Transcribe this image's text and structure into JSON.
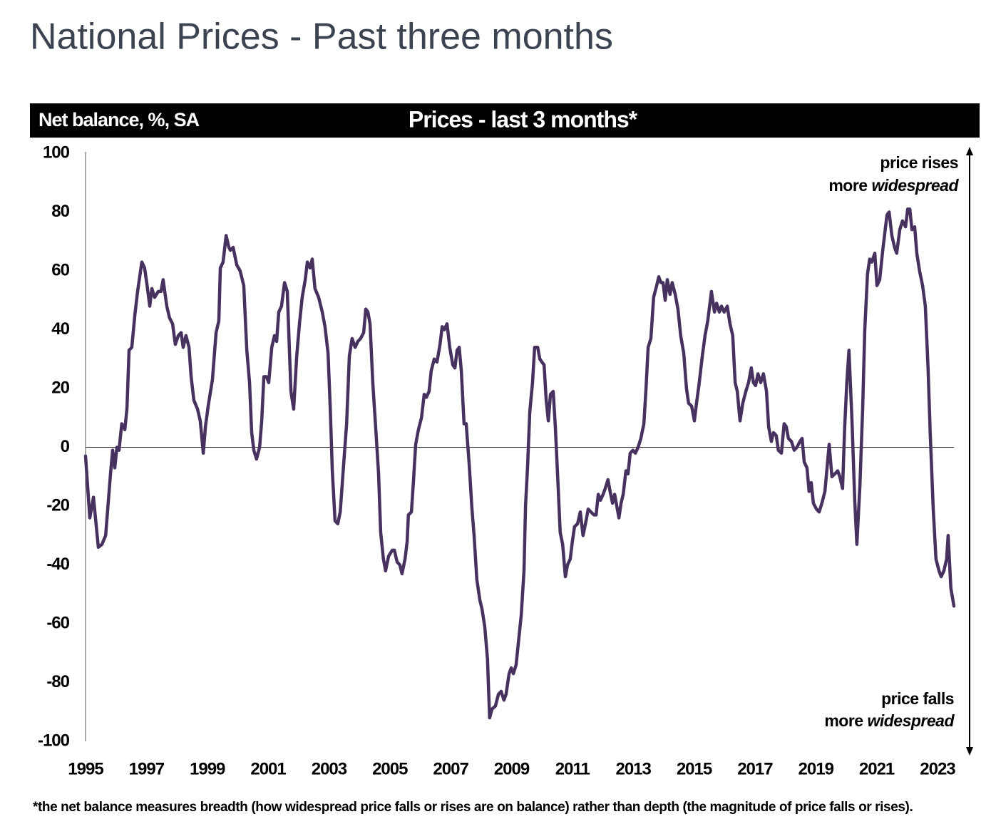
{
  "chart_data": {
    "type": "line",
    "title": "National Prices - Past three months",
    "y_label": "Net balance, %, SA",
    "subtitle": "Prices - last 3 months*",
    "footnote": "*the net balance measures breadth (how widespread price falls or rises are on balance)  rather than depth (the magnitude of price falls or rises).",
    "top_annotation": {
      "line1": "price rises",
      "line2": "more",
      "line2_italic": "widespread"
    },
    "bottom_annotation": {
      "line1": "price falls",
      "line2": "more",
      "line2_italic": "widespread"
    },
    "xlim": [
      1995,
      2023.54
    ],
    "xticks": [
      1995,
      1997,
      1999,
      2001,
      2003,
      2005,
      2007,
      2009,
      2011,
      2013,
      2015,
      2017,
      2019,
      2021,
      2023
    ],
    "ylim": [
      -100,
      100
    ],
    "yticks": [
      100,
      80,
      60,
      40,
      20,
      0,
      -20,
      -40,
      -60,
      -80,
      -100
    ],
    "x": [
      1995.0,
      1995.14,
      1995.26,
      1995.42,
      1995.54,
      1995.66,
      1995.82,
      1995.89,
      1995.96,
      1996.03,
      1996.1,
      1996.19,
      1996.29,
      1996.36,
      1996.43,
      1996.52,
      1996.62,
      1996.71,
      1996.85,
      1996.94,
      1997.01,
      1997.11,
      1997.18,
      1997.27,
      1997.39,
      1997.48,
      1997.55,
      1997.67,
      1997.76,
      1997.86,
      1997.95,
      1998.05,
      1998.14,
      1998.21,
      1998.3,
      1998.4,
      1998.47,
      1998.56,
      1998.68,
      1998.77,
      1998.87,
      1998.94,
      1999.03,
      1999.17,
      1999.29,
      1999.38,
      1999.43,
      1999.52,
      1999.62,
      1999.71,
      1999.76,
      1999.85,
      1999.97,
      2000.08,
      2000.2,
      2000.3,
      2000.39,
      2000.46,
      2000.53,
      2000.62,
      2000.72,
      2000.79,
      2000.86,
      2000.95,
      2001.02,
      2001.12,
      2001.21,
      2001.28,
      2001.35,
      2001.44,
      2001.54,
      2001.63,
      2001.75,
      2001.84,
      2001.94,
      2002.03,
      2002.12,
      2002.22,
      2002.29,
      2002.38,
      2002.45,
      2002.54,
      2002.66,
      2002.78,
      2002.87,
      2002.97,
      2003.04,
      2003.11,
      2003.2,
      2003.29,
      2003.37,
      2003.46,
      2003.58,
      2003.67,
      2003.76,
      2003.86,
      2003.95,
      2004.04,
      2004.14,
      2004.21,
      2004.28,
      2004.35,
      2004.44,
      2004.54,
      2004.63,
      2004.7,
      2004.79,
      2004.86,
      2004.96,
      2005.08,
      2005.15,
      2005.24,
      2005.33,
      2005.4,
      2005.5,
      2005.57,
      2005.61,
      2005.71,
      2005.78,
      2005.85,
      2005.94,
      2006.04,
      2006.13,
      2006.2,
      2006.29,
      2006.36,
      2006.46,
      2006.55,
      2006.65,
      2006.72,
      2006.79,
      2006.88,
      2006.97,
      2007.07,
      2007.14,
      2007.21,
      2007.28,
      2007.35,
      2007.44,
      2007.51,
      2007.61,
      2007.7,
      2007.77,
      2007.86,
      2007.96,
      2008.03,
      2008.12,
      2008.21,
      2008.28,
      2008.36,
      2008.47,
      2008.57,
      2008.66,
      2008.75,
      2008.82,
      2008.92,
      2008.99,
      2009.06,
      2009.15,
      2009.22,
      2009.32,
      2009.41,
      2009.46,
      2009.53,
      2009.6,
      2009.69,
      2009.76,
      2009.86,
      2009.93,
      2010.0,
      2010.07,
      2010.14,
      2010.21,
      2010.28,
      2010.37,
      2010.44,
      2010.53,
      2010.6,
      2010.68,
      2010.77,
      2010.84,
      2010.93,
      2011.0,
      2011.07,
      2011.17,
      2011.26,
      2011.35,
      2011.45,
      2011.52,
      2011.61,
      2011.71,
      2011.78,
      2011.85,
      2011.92,
      2012.01,
      2012.08,
      2012.17,
      2012.24,
      2012.32,
      2012.39,
      2012.46,
      2012.53,
      2012.6,
      2012.67,
      2012.76,
      2012.83,
      2012.9,
      2012.99,
      2013.07,
      2013.16,
      2013.25,
      2013.35,
      2013.42,
      2013.49,
      2013.58,
      2013.67,
      2013.77,
      2013.84,
      2013.91,
      2013.98,
      2014.05,
      2014.12,
      2014.21,
      2014.28,
      2014.38,
      2014.47,
      2014.56,
      2014.66,
      2014.75,
      2014.82,
      2014.92,
      2015.01,
      2015.08,
      2015.17,
      2015.27,
      2015.36,
      2015.45,
      2015.57,
      2015.67,
      2015.74,
      2015.83,
      2015.9,
      2015.99,
      2016.09,
      2016.18,
      2016.27,
      2016.35,
      2016.42,
      2016.51,
      2016.6,
      2016.7,
      2016.79,
      2016.88,
      2016.95,
      2017.02,
      2017.1,
      2017.19,
      2017.28,
      2017.38,
      2017.45,
      2017.54,
      2017.61,
      2017.7,
      2017.77,
      2017.87,
      2017.96,
      2018.03,
      2018.1,
      2018.2,
      2018.29,
      2018.38,
      2018.48,
      2018.55,
      2018.62,
      2018.71,
      2018.78,
      2018.85,
      2018.92,
      2019.02,
      2019.11,
      2019.2,
      2019.3,
      2019.37,
      2019.44,
      2019.53,
      2019.63,
      2019.72,
      2019.79,
      2019.88,
      2019.95,
      2020.02,
      2020.09,
      2020.19,
      2020.28,
      2020.35,
      2020.45,
      2020.54,
      2020.61,
      2020.7,
      2020.77,
      2020.84,
      2020.94,
      2021.01,
      2021.1,
      2021.2,
      2021.27,
      2021.34,
      2021.41,
      2021.5,
      2021.59,
      2021.66,
      2021.76,
      2021.85,
      2021.95,
      2022.02,
      2022.09,
      2022.16,
      2022.25,
      2022.32,
      2022.41,
      2022.51,
      2022.6,
      2022.69,
      2022.76,
      2022.86,
      2022.95,
      2023.05,
      2023.12,
      2023.21,
      2023.3,
      2023.35,
      2023.44,
      2023.54
    ],
    "series": [
      {
        "color": "#47325f",
        "values": [
          -3,
          -24,
          -17,
          -34,
          -33,
          -30,
          -9,
          -1,
          -7,
          0,
          -1,
          8,
          6,
          13,
          33,
          34,
          45,
          53,
          63,
          61,
          56,
          48,
          54,
          51,
          53,
          53,
          57,
          48,
          44,
          42,
          35,
          38,
          39,
          34,
          38,
          34,
          24,
          16,
          13,
          9,
          -2,
          7,
          14,
          23,
          39,
          43,
          61,
          63,
          72,
          68,
          67,
          68,
          62,
          60,
          55,
          33,
          22,
          5,
          -1,
          -4,
          0,
          9,
          24,
          24,
          22,
          34,
          38,
          36,
          46,
          48,
          56,
          53,
          19,
          13,
          31,
          42,
          51,
          57,
          63,
          61,
          64,
          54,
          51,
          46,
          41,
          32,
          14,
          -8,
          -25,
          -26,
          -22,
          -9,
          8,
          31,
          37,
          34,
          36,
          37,
          39,
          47,
          46,
          42,
          22,
          6,
          -9,
          -29,
          -38,
          -42,
          -37,
          -35,
          -35,
          -39,
          -40,
          -43,
          -38,
          -32,
          -23,
          -22,
          -11,
          1,
          6,
          10,
          18,
          17,
          19,
          26,
          30,
          29,
          35,
          41,
          40,
          42,
          34,
          28,
          27,
          33,
          34,
          26,
          8,
          8,
          -6,
          -21,
          -30,
          -45,
          -52,
          -55,
          -61,
          -72,
          -92,
          -89,
          -88,
          -84,
          -83,
          -86,
          -84,
          -77,
          -75,
          -77,
          -74,
          -67,
          -57,
          -42,
          -20,
          -6,
          12,
          22,
          34,
          34,
          30,
          29,
          28,
          16,
          9,
          18,
          19,
          7,
          -13,
          -29,
          -33,
          -44,
          -40,
          -38,
          -32,
          -27,
          -26,
          -22,
          -30,
          -25,
          -21,
          -22,
          -23,
          -23,
          -16,
          -18,
          -16,
          -14,
          -11,
          -15,
          -19,
          -16,
          -20,
          -24,
          -19,
          -16,
          -8,
          -9,
          -2,
          -1,
          -2,
          0,
          3,
          8,
          20,
          34,
          37,
          51,
          55,
          58,
          56,
          56,
          50,
          57,
          52,
          56,
          52,
          47,
          38,
          32,
          20,
          15,
          14,
          9,
          15,
          22,
          31,
          38,
          43,
          53,
          46,
          49,
          46,
          48,
          46,
          48,
          42,
          38,
          22,
          19,
          9,
          15,
          19,
          22,
          27,
          22,
          21,
          25,
          22,
          25,
          19,
          7,
          2,
          5,
          4,
          -1,
          -2,
          8,
          7,
          3,
          2,
          -1,
          0,
          2,
          3,
          -5,
          -7,
          -15,
          -12,
          -19,
          -21,
          -22,
          -19,
          -15,
          -7,
          1,
          -10,
          -9,
          -8,
          -10,
          -14,
          7,
          22,
          33,
          9,
          -18,
          -33,
          -13,
          13,
          40,
          59,
          64,
          63,
          66,
          55,
          57,
          67,
          73,
          79,
          80,
          72,
          68,
          66,
          74,
          77,
          75,
          81,
          81,
          74,
          75,
          66,
          60,
          55,
          48,
          27,
          5,
          -21,
          -38,
          -42,
          -44,
          -42,
          -38,
          -30,
          -48,
          -54
        ]
      }
    ]
  }
}
